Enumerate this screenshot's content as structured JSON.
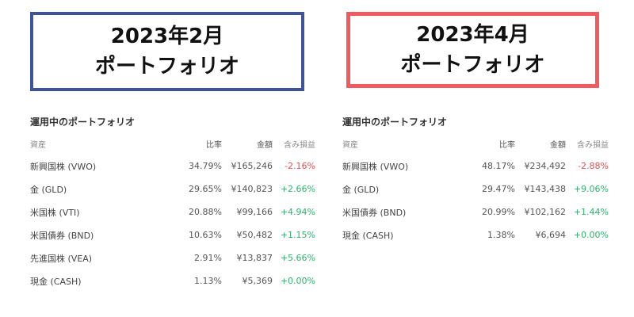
{
  "colors": {
    "left_border": "#3d539a",
    "right_border": "#f15a5e",
    "negative": "#e0524f",
    "positive": "#2fb36c"
  },
  "left": {
    "heading_line1": "2023年2月",
    "heading_line2": "ポートフォリオ",
    "table_title": "運用中のポートフォリオ",
    "columns": {
      "asset": "資産",
      "ratio": "比率",
      "amount": "金額",
      "pnl": "含み損益"
    },
    "rows": [
      {
        "asset": "新興国株 (VWO)",
        "ratio": "34.79%",
        "amount": "¥165,246",
        "pnl": "-2.16%",
        "pnl_sign": "neg"
      },
      {
        "asset": "金 (GLD)",
        "ratio": "29.65%",
        "amount": "¥140,823",
        "pnl": "+2.66%",
        "pnl_sign": "pos"
      },
      {
        "asset": "米国株 (VTI)",
        "ratio": "20.88%",
        "amount": "¥99,166",
        "pnl": "+4.94%",
        "pnl_sign": "pos"
      },
      {
        "asset": "米国債券 (BND)",
        "ratio": "10.63%",
        "amount": "¥50,482",
        "pnl": "+1.15%",
        "pnl_sign": "pos"
      },
      {
        "asset": "先進国株 (VEA)",
        "ratio": "2.91%",
        "amount": "¥13,837",
        "pnl": "+5.66%",
        "pnl_sign": "pos"
      },
      {
        "asset": "現金 (CASH)",
        "ratio": "1.13%",
        "amount": "¥5,369",
        "pnl": "+0.00%",
        "pnl_sign": "pos"
      }
    ]
  },
  "right": {
    "heading_line1": "2023年4月",
    "heading_line2": "ポートフォリオ",
    "table_title": "運用中のポートフォリオ",
    "columns": {
      "asset": "資産",
      "ratio": "比率",
      "amount": "金額",
      "pnl": "含み損益"
    },
    "rows": [
      {
        "asset": "新興国株 (VWO)",
        "ratio": "48.17%",
        "amount": "¥234,492",
        "pnl": "-2.88%",
        "pnl_sign": "neg"
      },
      {
        "asset": "金 (GLD)",
        "ratio": "29.47%",
        "amount": "¥143,438",
        "pnl": "+9.06%",
        "pnl_sign": "pos"
      },
      {
        "asset": "米国債券 (BND)",
        "ratio": "20.99%",
        "amount": "¥102,162",
        "pnl": "+1.44%",
        "pnl_sign": "pos"
      },
      {
        "asset": "現金 (CASH)",
        "ratio": "1.38%",
        "amount": "¥6,694",
        "pnl": "+0.00%",
        "pnl_sign": "pos"
      }
    ]
  }
}
